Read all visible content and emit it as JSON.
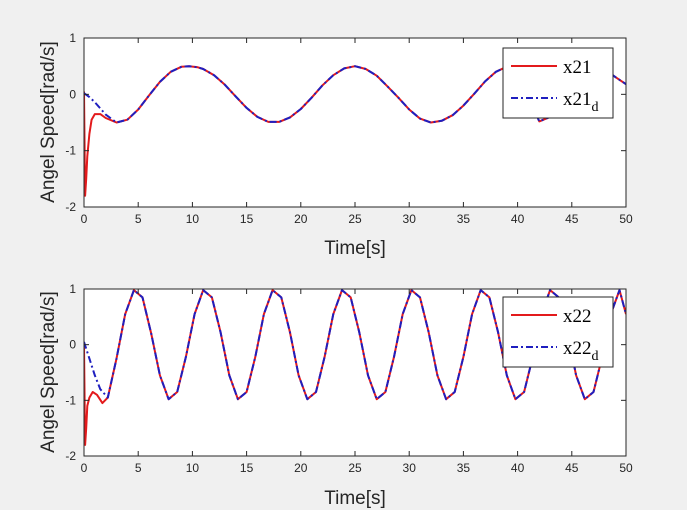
{
  "chart_data": [
    {
      "type": "line",
      "xlabel": "Time[s]",
      "ylabel": "Angel Speed[rad/s]",
      "xlim": [
        0,
        50
      ],
      "ylim": [
        -2,
        1
      ],
      "xticks": [
        "0",
        "5",
        "10",
        "15",
        "20",
        "25",
        "30",
        "35",
        "40",
        "45",
        "50"
      ],
      "yticks": [
        "-2",
        "-1",
        "0",
        "1"
      ],
      "grid": false,
      "legend_position": "top-right",
      "series": [
        {
          "name": "x21",
          "color": "#e31a1c",
          "style": "solid",
          "x": [
            0,
            0.1,
            0.2,
            0.3,
            0.5,
            0.7,
            1.0,
            1.5,
            2,
            3,
            4,
            5,
            6,
            7,
            8,
            9,
            9.7,
            10.5,
            11,
            12,
            13,
            14,
            15,
            16,
            17,
            18,
            19,
            20,
            21,
            22,
            23,
            24,
            25,
            26,
            27,
            28,
            29,
            30,
            31,
            32,
            33,
            34,
            35,
            36,
            37,
            38,
            39,
            40,
            41,
            42,
            43,
            44,
            45,
            46,
            47,
            48,
            49,
            50
          ],
          "y": [
            0.05,
            -1.8,
            -1.5,
            -1.1,
            -0.7,
            -0.45,
            -0.35,
            -0.35,
            -0.42,
            -0.5,
            -0.45,
            -0.27,
            -0.02,
            0.22,
            0.4,
            0.49,
            0.5,
            0.48,
            0.45,
            0.34,
            0.17,
            -0.04,
            -0.24,
            -0.4,
            -0.49,
            -0.49,
            -0.41,
            -0.26,
            -0.06,
            0.16,
            0.34,
            0.46,
            0.5,
            0.45,
            0.33,
            0.14,
            -0.06,
            -0.27,
            -0.43,
            -0.5,
            -0.47,
            -0.37,
            -0.2,
            0.01,
            0.23,
            0.4,
            0.49,
            0.47,
            -0.05,
            -0.48,
            -0.4,
            -0.16,
            0.14,
            0.38,
            0.48,
            0.45,
            0.31,
            0.18
          ]
        },
        {
          "name": "x21_d",
          "color": "#1f1fbf",
          "style": "dashdot",
          "x": [
            0,
            0.5,
            1.0,
            1.5,
            2,
            3,
            4,
            5,
            6,
            7,
            8,
            9,
            9.7,
            10.5,
            11,
            12,
            13,
            14,
            15,
            16,
            17,
            18,
            19,
            20,
            21,
            22,
            23,
            24,
            25,
            26,
            27,
            28,
            29,
            30,
            31,
            32,
            33,
            34,
            35,
            36,
            37,
            38,
            39,
            40,
            41,
            42,
            43,
            44,
            45,
            46,
            47,
            48,
            49,
            50
          ],
          "y": [
            0.02,
            -0.05,
            -0.14,
            -0.25,
            -0.36,
            -0.5,
            -0.45,
            -0.27,
            -0.02,
            0.22,
            0.4,
            0.49,
            0.5,
            0.48,
            0.45,
            0.34,
            0.17,
            -0.04,
            -0.24,
            -0.4,
            -0.49,
            -0.49,
            -0.41,
            -0.26,
            -0.06,
            0.16,
            0.34,
            0.46,
            0.5,
            0.45,
            0.33,
            0.14,
            -0.06,
            -0.27,
            -0.43,
            -0.5,
            -0.47,
            -0.37,
            -0.2,
            0.01,
            0.23,
            0.4,
            0.49,
            0.47,
            -0.05,
            -0.48,
            -0.4,
            -0.16,
            0.14,
            0.38,
            0.48,
            0.45,
            0.31,
            0.18
          ]
        }
      ],
      "legend": [
        {
          "label": "x21",
          "subscript": ""
        },
        {
          "label": "x21",
          "subscript": "d"
        }
      ]
    },
    {
      "type": "line",
      "xlabel": "Time[s]",
      "ylabel": "Angel Speed[rad/s]",
      "xlim": [
        0,
        50
      ],
      "ylim": [
        -2,
        1
      ],
      "xticks": [
        "0",
        "5",
        "10",
        "15",
        "20",
        "25",
        "30",
        "35",
        "40",
        "45",
        "50"
      ],
      "yticks": [
        "-2",
        "-1",
        "0",
        "1"
      ],
      "grid": false,
      "legend_position": "top-right",
      "series": [
        {
          "name": "x22",
          "color": "#e31a1c",
          "style": "solid",
          "x": [
            0,
            0.1,
            0.2,
            0.3,
            0.5,
            0.8,
            1.2,
            1.7,
            2.2,
            3.0,
            3.8,
            4.6,
            5.4,
            6.2,
            7.0,
            7.8,
            8.6,
            9.4,
            10.2,
            11.0,
            11.8,
            12.6,
            13.4,
            14.2,
            15.0,
            15.8,
            16.6,
            17.4,
            18.2,
            19.0,
            19.8,
            20.6,
            21.4,
            22.2,
            23.0,
            23.8,
            24.6,
            25.4,
            26.2,
            27.0,
            27.8,
            28.6,
            29.4,
            30.2,
            31.0,
            31.8,
            32.6,
            33.4,
            34.2,
            35.0,
            35.8,
            36.6,
            37.4,
            38.2,
            39.0,
            39.8,
            40.6,
            41.4,
            42.2,
            43.0,
            43.8,
            44.6,
            45.4,
            46.2,
            47.0,
            47.8,
            48.6,
            49.4,
            50
          ],
          "y": [
            0,
            -1.8,
            -1.5,
            -1.1,
            -0.95,
            -0.85,
            -0.9,
            -1.05,
            -0.95,
            -0.25,
            0.55,
            0.98,
            0.85,
            0.2,
            -0.55,
            -0.98,
            -0.85,
            -0.22,
            0.55,
            0.98,
            0.85,
            0.22,
            -0.55,
            -0.98,
            -0.85,
            -0.22,
            0.55,
            0.98,
            0.85,
            0.22,
            -0.55,
            -0.98,
            -0.85,
            -0.22,
            0.55,
            0.98,
            0.85,
            0.22,
            -0.55,
            -0.98,
            -0.85,
            -0.22,
            0.55,
            0.98,
            0.85,
            0.22,
            -0.55,
            -0.98,
            -0.85,
            -0.22,
            0.55,
            0.98,
            0.85,
            0.22,
            -0.55,
            -0.98,
            -0.85,
            -0.22,
            0.55,
            0.98,
            0.85,
            0.22,
            -0.55,
            -0.98,
            -0.85,
            -0.22,
            0.55,
            0.98,
            0.55
          ]
        },
        {
          "name": "x22_d",
          "color": "#1f1fbf",
          "style": "dashdot",
          "x": [
            0,
            0.5,
            1.0,
            1.5,
            2.2,
            3.0,
            3.8,
            4.6,
            5.4,
            6.2,
            7.0,
            7.8,
            8.6,
            9.4,
            10.2,
            11.0,
            11.8,
            12.6,
            13.4,
            14.2,
            15.0,
            15.8,
            16.6,
            17.4,
            18.2,
            19.0,
            19.8,
            20.6,
            21.4,
            22.2,
            23.0,
            23.8,
            24.6,
            25.4,
            26.2,
            27.0,
            27.8,
            28.6,
            29.4,
            30.2,
            31.0,
            31.8,
            32.6,
            33.4,
            34.2,
            35.0,
            35.8,
            36.6,
            37.4,
            38.2,
            39.0,
            39.8,
            40.6,
            41.4,
            42.2,
            43.0,
            43.8,
            44.6,
            45.4,
            46.2,
            47.0,
            47.8,
            48.6,
            49.4,
            50
          ],
          "y": [
            0.05,
            -0.25,
            -0.55,
            -0.8,
            -0.95,
            -0.25,
            0.55,
            0.98,
            0.85,
            0.2,
            -0.55,
            -0.98,
            -0.85,
            -0.22,
            0.55,
            0.98,
            0.85,
            0.22,
            -0.55,
            -0.98,
            -0.85,
            -0.22,
            0.55,
            0.98,
            0.85,
            0.22,
            -0.55,
            -0.98,
            -0.85,
            -0.22,
            0.55,
            0.98,
            0.85,
            0.22,
            -0.55,
            -0.98,
            -0.85,
            -0.22,
            0.55,
            0.98,
            0.85,
            0.22,
            -0.55,
            -0.98,
            -0.85,
            -0.22,
            0.55,
            0.98,
            0.85,
            0.22,
            -0.55,
            -0.98,
            -0.85,
            -0.22,
            0.55,
            0.98,
            0.85,
            0.22,
            -0.55,
            -0.98,
            -0.85,
            -0.22,
            0.55,
            0.98,
            0.55
          ]
        }
      ],
      "legend": [
        {
          "label": "x22",
          "subscript": ""
        },
        {
          "label": "x22",
          "subscript": "d"
        }
      ]
    }
  ]
}
